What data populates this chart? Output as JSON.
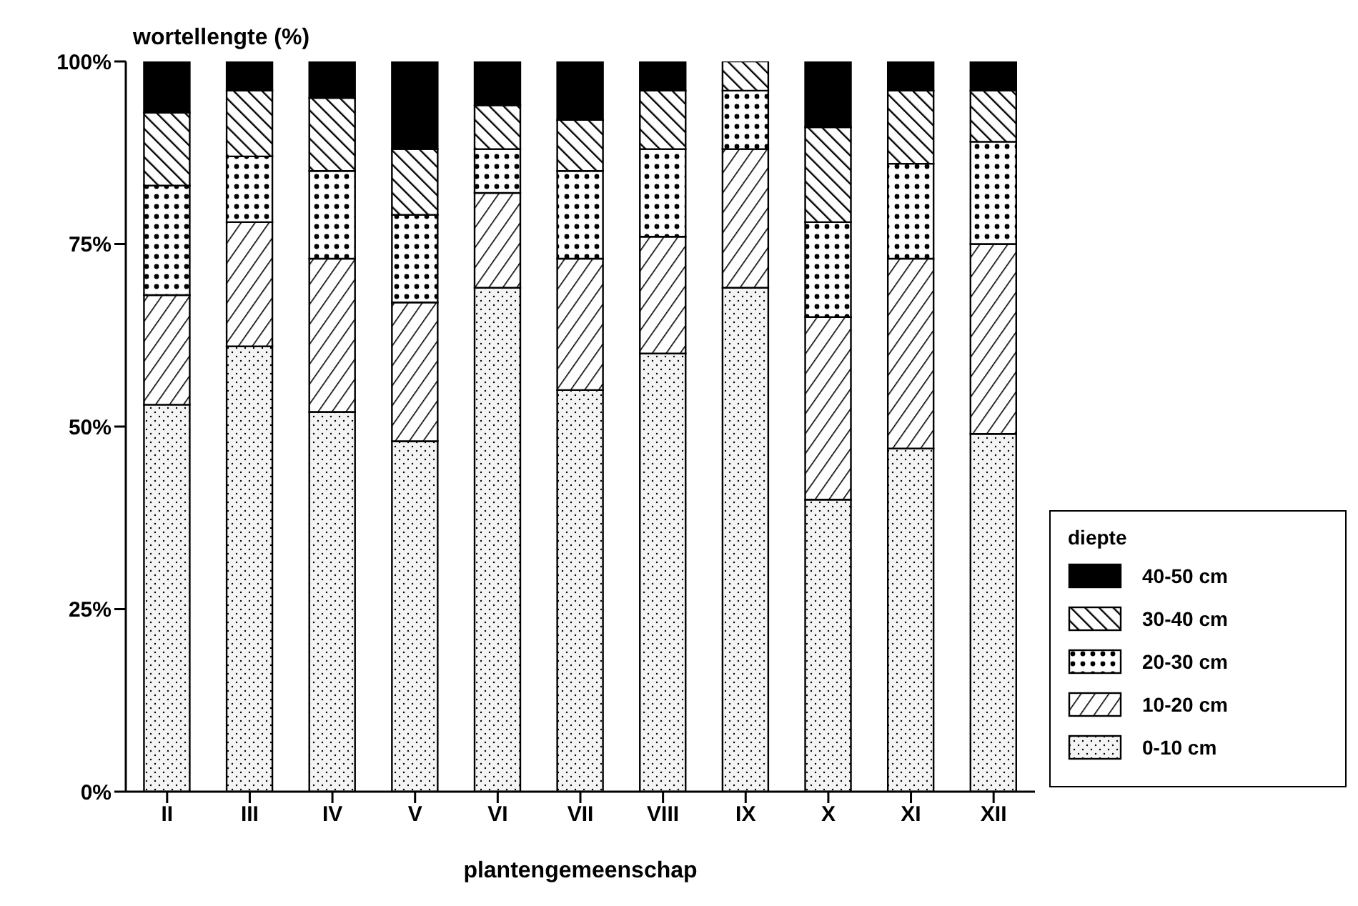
{
  "chart_data": {
    "type": "bar",
    "stacked": true,
    "ylabel": "wortellengte (%)",
    "xlabel": "plantengemeenschap",
    "legend_title": "diepte",
    "legend": "right",
    "categories": [
      "II",
      "III",
      "IV",
      "V",
      "VI",
      "VII",
      "VIII",
      "IX",
      "X",
      "XI",
      "XII"
    ],
    "ylim": [
      0,
      100
    ],
    "yticks": [
      {
        "value": 0,
        "label": "0%"
      },
      {
        "value": 25,
        "label": "25%"
      },
      {
        "value": 50,
        "label": "50%"
      },
      {
        "value": 75,
        "label": "75%"
      },
      {
        "value": 100,
        "label": "100%"
      }
    ],
    "series": [
      {
        "name": "0-10 cm",
        "color": "#000000",
        "values": [
          53,
          61,
          52,
          48,
          69,
          55,
          60,
          69,
          40,
          47,
          49
        ]
      },
      {
        "name": "10-20 cm",
        "color": "#000000",
        "values": [
          15,
          17,
          21,
          19,
          13,
          18,
          16,
          19,
          25,
          26,
          26
        ]
      },
      {
        "name": "20-30 cm",
        "color": "#000000",
        "values": [
          15,
          9,
          12,
          12,
          6,
          12,
          12,
          8,
          13,
          13,
          14
        ]
      },
      {
        "name": "30-40 cm",
        "color": "#000000",
        "values": [
          10,
          9,
          10,
          9,
          6,
          7,
          8,
          4,
          13,
          10,
          7
        ]
      },
      {
        "name": "40-50 cm",
        "color": "#000000",
        "values": [
          7,
          4,
          5,
          12,
          6,
          8,
          4,
          0,
          9,
          4,
          4
        ]
      }
    ]
  }
}
